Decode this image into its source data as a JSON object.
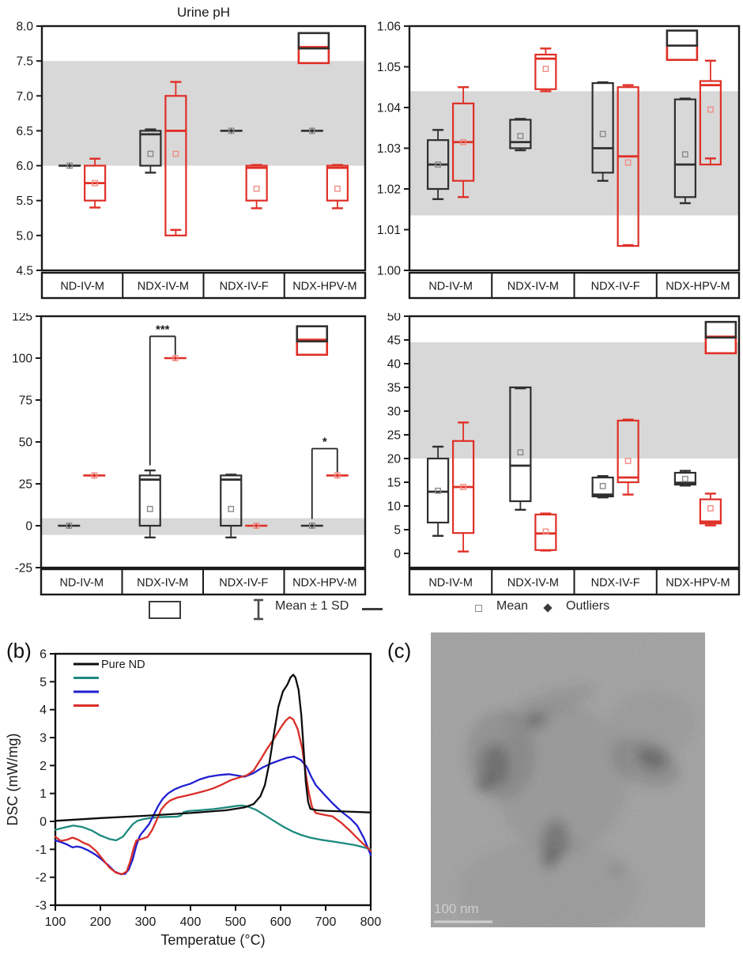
{
  "figure": {
    "panel_b_label": "(b)",
    "panel_c_label": "(c)"
  },
  "colors": {
    "axis": "#1a1a1a",
    "band": "#d8d8d8",
    "black_series": "#2f2f2f",
    "red_series": "#df2f26",
    "black_mean": "#8a8a8a",
    "red_mean": "#ee8d85",
    "dsc_black": "#0d0d0d",
    "dsc_teal": "#1d8a7e",
    "dsc_blue": "#2020d0",
    "dsc_red": "#d92e28"
  },
  "categories": [
    "ND-IV-M",
    "NDX-IV-M",
    "NDX-IV-F",
    "NDX-HPV-M"
  ],
  "box_legend": {
    "mean_sd_label": "Mean ± 1 SD",
    "mean_label": "Mean",
    "outliers_label": "Outliers"
  },
  "tem": {
    "scale_bar_label": "100 nm"
  },
  "chart_data": [
    {
      "id": "ph",
      "type": "box",
      "title": "Urine pH",
      "ylim": [
        4.5,
        8.0
      ],
      "ytick_step": 0.5,
      "ydecimals": 1,
      "band": [
        6.0,
        7.5
      ],
      "categories": [
        "ND-IV-M",
        "NDX-IV-M",
        "NDX-IV-F",
        "NDX-HPV-M"
      ],
      "black": [
        {
          "flat": 6.0,
          "mean": 6.0
        },
        {
          "q1": 6.0,
          "q3": 6.5,
          "med": 6.45,
          "mean": 6.17,
          "lo": 5.9,
          "hi": 6.52
        },
        {
          "flat": 6.5,
          "mean": 6.5
        },
        {
          "flat": 6.5,
          "mean": 6.5
        }
      ],
      "red": [
        {
          "q1": 5.5,
          "q3": 6.0,
          "med": 5.75,
          "mean": 5.75,
          "lo": 5.4,
          "hi": 6.1
        },
        {
          "q1": 5.0,
          "q3": 7.0,
          "med": 6.5,
          "mean": 6.17,
          "lo": 5.08,
          "hi": 7.2
        },
        {
          "q1": 5.5,
          "q3": 6.0,
          "med": 5.97,
          "mean": 5.67,
          "lo": 5.39,
          "hi": 6.01
        },
        {
          "q1": 5.5,
          "q3": 6.0,
          "med": 5.97,
          "mean": 5.67,
          "lo": 5.39,
          "hi": 6.01
        }
      ],
      "inset": {
        "black": [
          7.68,
          7.9
        ],
        "red": [
          7.47,
          7.7
        ]
      }
    },
    {
      "id": "sg",
      "type": "box",
      "title": "",
      "ylim": [
        1.0,
        1.06
      ],
      "ytick_step": 0.01,
      "ydecimals": 2,
      "band": [
        1.0135,
        1.044
      ],
      "categories": [
        "ND-IV-M",
        "NDX-IV-M",
        "NDX-IV-F",
        "NDX-HPV-M"
      ],
      "black": [
        {
          "q1": 1.02,
          "q3": 1.032,
          "med": 1.026,
          "mean": 1.026,
          "lo": 1.0175,
          "hi": 1.0345
        },
        {
          "q1": 1.03,
          "q3": 1.037,
          "med": 1.0315,
          "mean": 1.033,
          "lo": 1.0295,
          "hi": 1.0372
        },
        {
          "q1": 1.024,
          "q3": 1.046,
          "med": 1.03,
          "mean": 1.0335,
          "lo": 1.022,
          "hi": 1.0462
        },
        {
          "q1": 1.018,
          "q3": 1.042,
          "med": 1.026,
          "mean": 1.0285,
          "lo": 1.0165,
          "hi": 1.0422
        }
      ],
      "red": [
        {
          "q1": 1.022,
          "q3": 1.041,
          "med": 1.0315,
          "mean": 1.0315,
          "lo": 1.018,
          "hi": 1.045
        },
        {
          "q1": 1.0445,
          "q3": 1.053,
          "med": 1.052,
          "mean": 1.0495,
          "lo": 1.044,
          "hi": 1.0545
        },
        {
          "q1": 1.006,
          "q3": 1.045,
          "med": 1.028,
          "mean": 1.0265,
          "lo": 1.0062,
          "hi": 1.0455
        },
        {
          "q1": 1.026,
          "q3": 1.0465,
          "med": 1.0455,
          "mean": 1.0395,
          "lo": 1.0275,
          "hi": 1.0515
        }
      ],
      "inset": {
        "black": [
          1.0552,
          1.0589
        ],
        "red": [
          1.0517,
          1.0552
        ]
      }
    },
    {
      "id": "p3",
      "type": "box",
      "title": "",
      "ylim": [
        -25,
        125
      ],
      "ytick_step": 25,
      "ydecimals": 0,
      "band": [
        -5.5,
        4.5
      ],
      "categories": [
        "ND-IV-M",
        "NDX-IV-M",
        "NDX-IV-F",
        "NDX-HPV-M"
      ],
      "black": [
        {
          "flat": 0,
          "mean": 0
        },
        {
          "q1": 0,
          "q3": 30,
          "med": 27.5,
          "mean": 10,
          "lo": -7,
          "hi": 33
        },
        {
          "q1": 0,
          "q3": 30,
          "med": 27.5,
          "mean": 10,
          "lo": -7,
          "hi": 30.5
        },
        {
          "flat": 0,
          "mean": 0
        }
      ],
      "red": [
        {
          "flat": 30,
          "mean": 30
        },
        {
          "flat": 100,
          "mean": 100
        },
        {
          "flat": 0,
          "mean": 0
        },
        {
          "flat": 30,
          "mean": 30
        }
      ],
      "inset": {
        "black": [
          110,
          119
        ],
        "red": [
          102,
          111
        ]
      },
      "significance": [
        {
          "cat": 1,
          "label": "***",
          "bar": 113,
          "left_to": 36,
          "right_to": 102
        },
        {
          "cat": 3,
          "label": "*",
          "bar": 46,
          "left_to": 4,
          "right_to": 32
        }
      ]
    },
    {
      "id": "p4",
      "type": "box",
      "title": "",
      "ylim": [
        0,
        50
      ],
      "ytick_step": 5,
      "ydecimals": 0,
      "band": [
        20,
        44.5
      ],
      "categories": [
        "ND-IV-M",
        "NDX-IV-M",
        "NDX-IV-F",
        "NDX-HPV-M"
      ],
      "black": [
        {
          "q1": 6.5,
          "q3": 20,
          "med": 13,
          "mean": 13.2,
          "lo": 3.7,
          "hi": 22.5
        },
        {
          "q1": 11,
          "q3": 35,
          "med": 18.5,
          "mean": 21.3,
          "lo": 9.2,
          "hi": 34.8
        },
        {
          "q1": 12,
          "q3": 16,
          "med": 12.4,
          "mean": 14.2,
          "lo": 11.8,
          "hi": 16.3
        },
        {
          "q1": 14.5,
          "q3": 17,
          "med": 14.9,
          "mean": 15.7,
          "lo": 14.3,
          "hi": 17.4
        }
      ],
      "red": [
        {
          "q1": 4.3,
          "q3": 23.7,
          "med": 14,
          "mean": 14,
          "lo": 0.4,
          "hi": 27.6
        },
        {
          "q1": 0.7,
          "q3": 8.2,
          "med": 4.2,
          "mean": 4.6,
          "lo": 0.6,
          "hi": 8.4
        },
        {
          "q1": 15,
          "q3": 28,
          "med": 16,
          "mean": 19.5,
          "lo": 12.4,
          "hi": 28.2
        },
        {
          "q1": 6.3,
          "q3": 11.4,
          "med": 6.7,
          "mean": 9.5,
          "lo": 5.9,
          "hi": 12.6
        }
      ],
      "inset": {
        "black": [
          45.5,
          48.8
        ],
        "red": [
          42.2,
          45.7
        ]
      }
    },
    {
      "id": "dsc",
      "type": "line",
      "xlabel": "Temperatue (°C)",
      "ylabel": "DSC (mW/mg)",
      "xlim": [
        100,
        800
      ],
      "xtick_step": 100,
      "ylim": [
        -3,
        6
      ],
      "ytick_step": 1,
      "legend": [
        {
          "label": "Pure ND",
          "color_key": "dsc_black"
        },
        {
          "label": "",
          "color_key": "dsc_teal"
        },
        {
          "label": "",
          "color_key": "dsc_blue"
        },
        {
          "label": "",
          "color_key": "dsc_red"
        }
      ],
      "series": [
        {
          "name": "teal-curve",
          "color_key": "dsc_teal",
          "points": [
            [
              100,
              -0.3
            ],
            [
              120,
              -0.22
            ],
            [
              140,
              -0.15
            ],
            [
              160,
              -0.2
            ],
            [
              180,
              -0.32
            ],
            [
              200,
              -0.5
            ],
            [
              220,
              -0.63
            ],
            [
              235,
              -0.68
            ],
            [
              250,
              -0.55
            ],
            [
              262,
              -0.3
            ],
            [
              272,
              -0.1
            ],
            [
              282,
              0.02
            ],
            [
              295,
              0.08
            ],
            [
              310,
              0.12
            ],
            [
              330,
              0.15
            ],
            [
              350,
              0.16
            ],
            [
              370,
              0.17
            ],
            [
              378,
              0.2
            ],
            [
              385,
              0.33
            ],
            [
              395,
              0.37
            ],
            [
              420,
              0.4
            ],
            [
              450,
              0.44
            ],
            [
              480,
              0.5
            ],
            [
              505,
              0.56
            ],
            [
              515,
              0.57
            ],
            [
              525,
              0.54
            ],
            [
              545,
              0.42
            ],
            [
              565,
              0.22
            ],
            [
              585,
              0.02
            ],
            [
              605,
              -0.18
            ],
            [
              625,
              -0.35
            ],
            [
              645,
              -0.48
            ],
            [
              665,
              -0.58
            ],
            [
              690,
              -0.66
            ],
            [
              715,
              -0.72
            ],
            [
              740,
              -0.78
            ],
            [
              765,
              -0.85
            ],
            [
              785,
              -0.93
            ],
            [
              800,
              -1.0
            ]
          ]
        },
        {
          "name": "blue-curve",
          "color_key": "dsc_blue",
          "points": [
            [
              100,
              -0.68
            ],
            [
              112,
              -0.74
            ],
            [
              125,
              -0.82
            ],
            [
              138,
              -0.93
            ],
            [
              148,
              -0.9
            ],
            [
              158,
              -0.93
            ],
            [
              172,
              -1.03
            ],
            [
              188,
              -1.18
            ],
            [
              202,
              -1.35
            ],
            [
              218,
              -1.58
            ],
            [
              232,
              -1.8
            ],
            [
              245,
              -1.89
            ],
            [
              255,
              -1.88
            ],
            [
              263,
              -1.72
            ],
            [
              272,
              -1.35
            ],
            [
              280,
              -0.85
            ],
            [
              288,
              -0.5
            ],
            [
              298,
              -0.3
            ],
            [
              308,
              -0.1
            ],
            [
              318,
              0.22
            ],
            [
              328,
              0.55
            ],
            [
              338,
              0.8
            ],
            [
              350,
              1.0
            ],
            [
              365,
              1.15
            ],
            [
              380,
              1.25
            ],
            [
              400,
              1.35
            ],
            [
              420,
              1.5
            ],
            [
              440,
              1.6
            ],
            [
              465,
              1.66
            ],
            [
              485,
              1.69
            ],
            [
              505,
              1.64
            ],
            [
              520,
              1.6
            ],
            [
              540,
              1.73
            ],
            [
              560,
              1.93
            ],
            [
              580,
              2.08
            ],
            [
              600,
              2.2
            ],
            [
              615,
              2.28
            ],
            [
              630,
              2.32
            ],
            [
              645,
              2.2
            ],
            [
              658,
              1.95
            ],
            [
              668,
              1.6
            ],
            [
              678,
              1.3
            ],
            [
              695,
              1.0
            ],
            [
              715,
              0.65
            ],
            [
              735,
              0.35
            ],
            [
              755,
              0.1
            ],
            [
              770,
              -0.15
            ],
            [
              785,
              -0.6
            ],
            [
              800,
              -1.2
            ]
          ]
        },
        {
          "name": "red-curve",
          "color_key": "dsc_red",
          "points": [
            [
              100,
              -0.55
            ],
            [
              112,
              -0.7
            ],
            [
              125,
              -0.66
            ],
            [
              138,
              -0.58
            ],
            [
              150,
              -0.65
            ],
            [
              162,
              -0.76
            ],
            [
              175,
              -0.85
            ],
            [
              190,
              -1.05
            ],
            [
              205,
              -1.35
            ],
            [
              220,
              -1.65
            ],
            [
              235,
              -1.84
            ],
            [
              248,
              -1.89
            ],
            [
              258,
              -1.8
            ],
            [
              266,
              -1.45
            ],
            [
              274,
              -0.95
            ],
            [
              280,
              -0.68
            ],
            [
              292,
              -0.63
            ],
            [
              305,
              -0.55
            ],
            [
              315,
              -0.3
            ],
            [
              325,
              0.05
            ],
            [
              335,
              0.42
            ],
            [
              345,
              0.62
            ],
            [
              355,
              0.75
            ],
            [
              370,
              0.85
            ],
            [
              390,
              0.92
            ],
            [
              410,
              1.0
            ],
            [
              430,
              1.08
            ],
            [
              450,
              1.18
            ],
            [
              470,
              1.32
            ],
            [
              490,
              1.48
            ],
            [
              510,
              1.58
            ],
            [
              525,
              1.65
            ],
            [
              540,
              1.82
            ],
            [
              555,
              2.2
            ],
            [
              570,
              2.6
            ],
            [
              585,
              2.95
            ],
            [
              600,
              3.35
            ],
            [
              612,
              3.62
            ],
            [
              620,
              3.73
            ],
            [
              628,
              3.65
            ],
            [
              638,
              3.3
            ],
            [
              648,
              2.6
            ],
            [
              656,
              1.7
            ],
            [
              663,
              1.0
            ],
            [
              670,
              0.5
            ],
            [
              678,
              0.3
            ],
            [
              695,
              0.24
            ],
            [
              715,
              0.18
            ],
            [
              735,
              -0.05
            ],
            [
              755,
              -0.35
            ],
            [
              775,
              -0.68
            ],
            [
              790,
              -0.9
            ],
            [
              800,
              -1.05
            ]
          ]
        },
        {
          "name": "pure-nd-curve",
          "color_key": "dsc_black",
          "points": [
            [
              100,
              0.02
            ],
            [
              200,
              0.12
            ],
            [
              300,
              0.2
            ],
            [
              400,
              0.3
            ],
            [
              480,
              0.4
            ],
            [
              520,
              0.5
            ],
            [
              540,
              0.62
            ],
            [
              555,
              0.9
            ],
            [
              565,
              1.3
            ],
            [
              575,
              2.1
            ],
            [
              585,
              3.1
            ],
            [
              595,
              4.1
            ],
            [
              605,
              4.65
            ],
            [
              615,
              4.9
            ],
            [
              622,
              5.15
            ],
            [
              628,
              5.25
            ],
            [
              633,
              5.15
            ],
            [
              640,
              4.7
            ],
            [
              646,
              3.8
            ],
            [
              651,
              2.6
            ],
            [
              656,
              1.4
            ],
            [
              661,
              0.7
            ],
            [
              666,
              0.45
            ],
            [
              680,
              0.4
            ],
            [
              700,
              0.38
            ],
            [
              750,
              0.35
            ],
            [
              800,
              0.32
            ]
          ]
        }
      ]
    }
  ]
}
